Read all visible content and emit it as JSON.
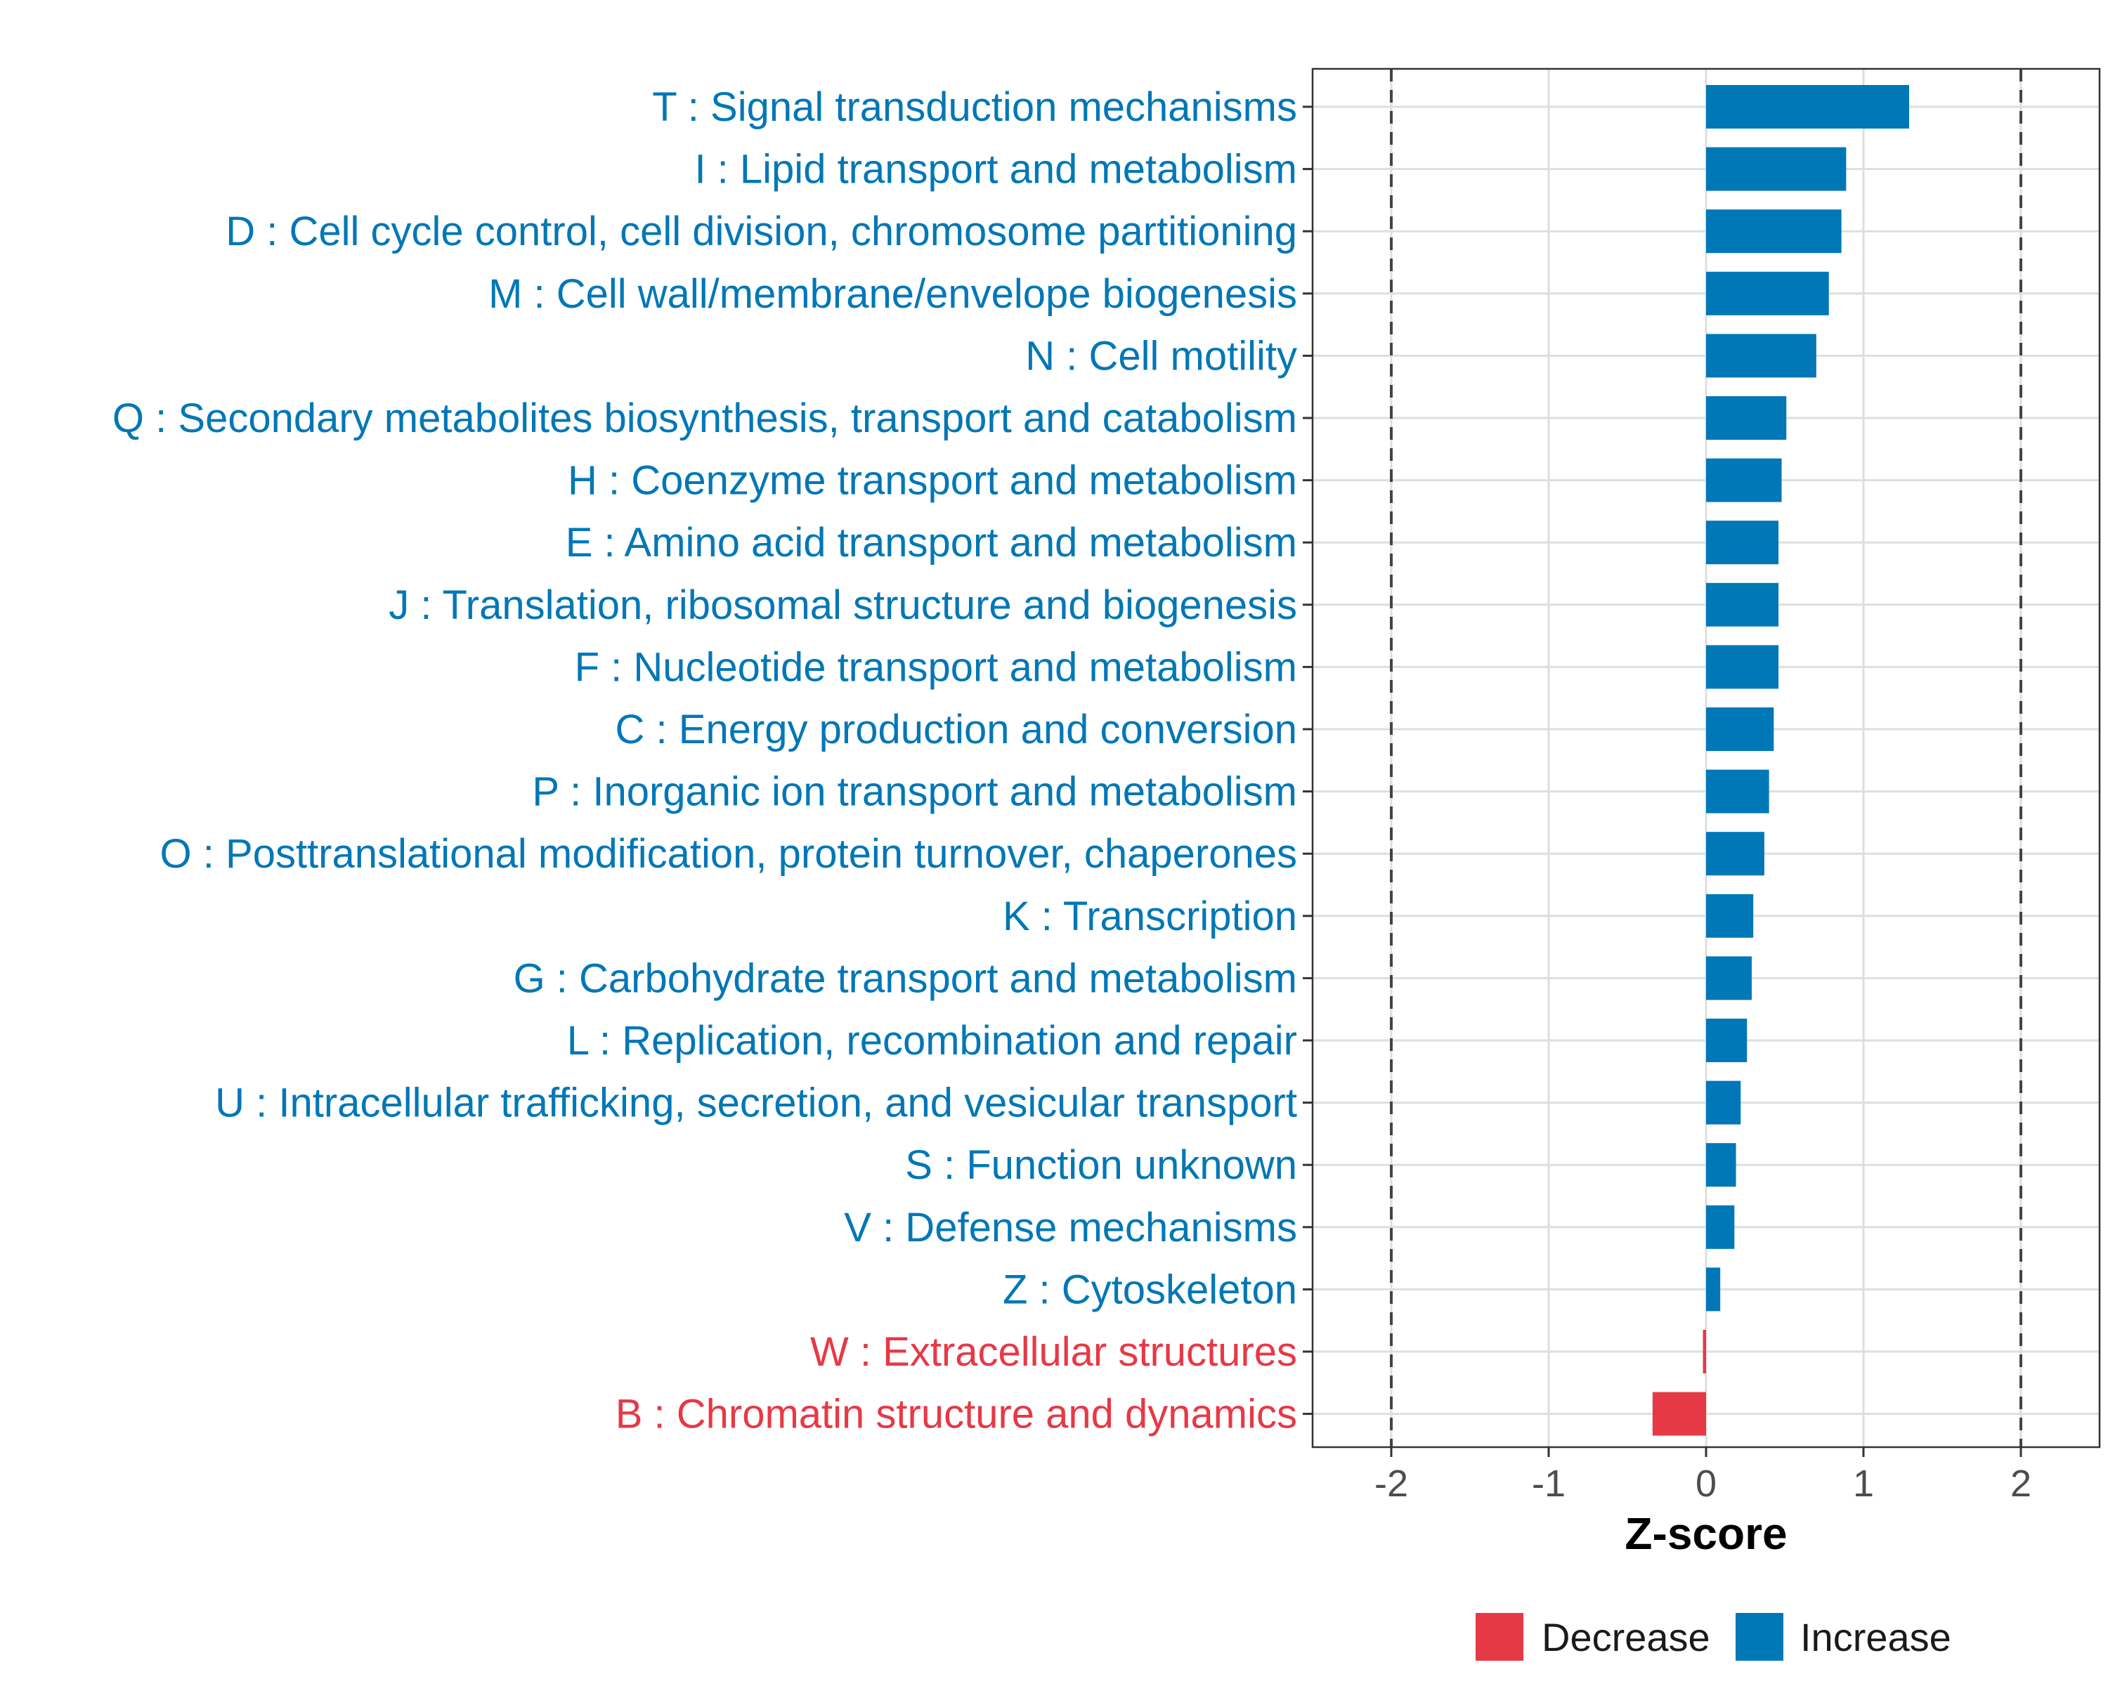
{
  "chart_data": {
    "type": "bar",
    "orientation": "horizontal",
    "xlabel": "Z-score",
    "ylabel": "",
    "xlim": [
      -2.5,
      2.5
    ],
    "xticks": [
      -2,
      -1,
      0,
      1,
      2
    ],
    "xtick_labels": [
      "-2",
      "-1",
      "0",
      "1",
      "2"
    ],
    "reference_lines": [
      -2,
      2
    ],
    "grid": true,
    "legend_position": "bottom",
    "colors": {
      "Decrease": "#E63946",
      "Increase": "#0077B6"
    },
    "legend": [
      {
        "name": "Decrease",
        "color": "#E63946"
      },
      {
        "name": "Increase",
        "color": "#0077B6"
      }
    ],
    "categories": [
      "T : Signal transduction mechanisms",
      "I : Lipid transport and metabolism",
      "D : Cell cycle control, cell division, chromosome partitioning",
      "M : Cell wall/membrane/envelope biogenesis",
      "N : Cell motility",
      "Q : Secondary metabolites biosynthesis, transport and catabolism",
      "H : Coenzyme transport and metabolism",
      "E : Amino acid transport and metabolism",
      "J : Translation, ribosomal structure and biogenesis",
      "F : Nucleotide transport and metabolism",
      "C : Energy production and conversion",
      "P : Inorganic ion transport and metabolism",
      "O : Posttranslational modification, protein turnover, chaperones",
      "K : Transcription",
      "G : Carbohydrate transport and metabolism",
      "L : Replication, recombination and repair",
      "U : Intracellular trafficking, secretion, and vesicular transport",
      "S : Function unknown",
      "V : Defense mechanisms",
      "Z : Cytoskeleton",
      "W : Extracellular structures",
      "B : Chromatin structure and dynamics"
    ],
    "values": [
      1.29,
      0.89,
      0.86,
      0.78,
      0.7,
      0.51,
      0.48,
      0.46,
      0.46,
      0.46,
      0.43,
      0.4,
      0.37,
      0.3,
      0.29,
      0.26,
      0.22,
      0.19,
      0.18,
      0.09,
      -0.02,
      -0.34
    ],
    "groups": [
      "Increase",
      "Increase",
      "Increase",
      "Increase",
      "Increase",
      "Increase",
      "Increase",
      "Increase",
      "Increase",
      "Increase",
      "Increase",
      "Increase",
      "Increase",
      "Increase",
      "Increase",
      "Increase",
      "Increase",
      "Increase",
      "Increase",
      "Increase",
      "Decrease",
      "Decrease"
    ]
  }
}
